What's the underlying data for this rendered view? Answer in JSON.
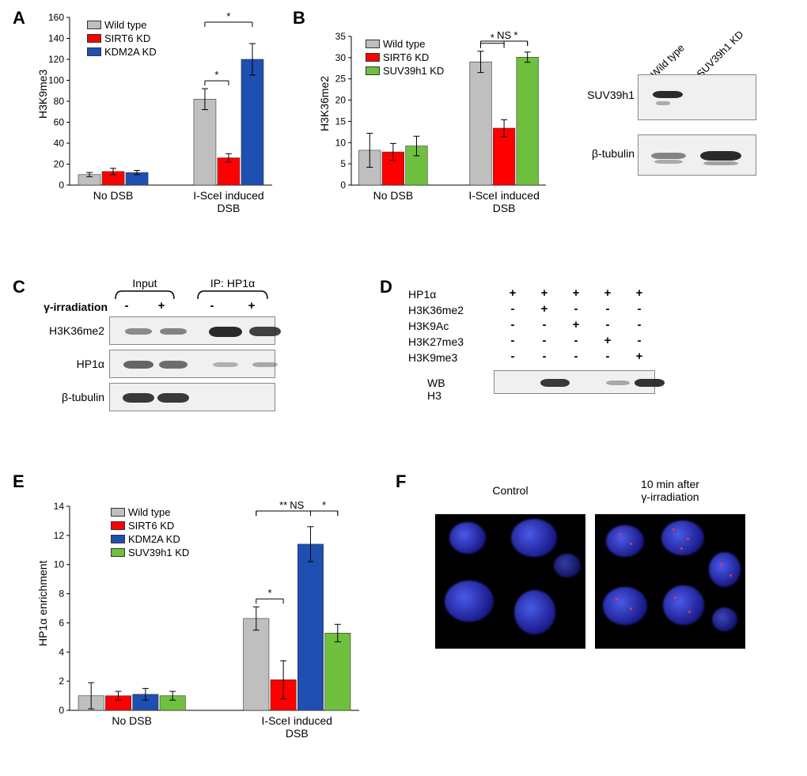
{
  "panelA": {
    "label": "A",
    "type": "bar",
    "ylabel": "H3K9me3",
    "ylim": [
      0,
      160
    ],
    "ytick_step": 20,
    "groups": [
      "No DSB",
      "I-SceI induced\nDSB"
    ],
    "series": [
      {
        "name": "Wild type",
        "color": "#bfbfbf",
        "values": [
          10,
          82
        ],
        "err": [
          2,
          10
        ]
      },
      {
        "name": "SIRT6 KD",
        "color": "#ff0000",
        "values": [
          13,
          26
        ],
        "err": [
          3,
          4
        ]
      },
      {
        "name": "KDM2A KD",
        "color": "#1f4fb0",
        "values": [
          12,
          120
        ],
        "err": [
          2,
          15
        ]
      }
    ],
    "sig": [
      {
        "from": 0,
        "to": 1,
        "group": 1,
        "label": "*"
      },
      {
        "from": 0,
        "to": 2,
        "group": 1,
        "label": "*"
      }
    ],
    "bar_width": 0.8,
    "background_color": "#ffffff",
    "axis_color": "#000000",
    "label_fontsize": 14,
    "tick_fontsize": 13
  },
  "panelB": {
    "label": "B",
    "type": "bar",
    "ylabel": "H3K36me2",
    "ylim": [
      0,
      35
    ],
    "ytick_step": 5,
    "groups": [
      "No DSB",
      "I-SceI induced\nDSB"
    ],
    "series": [
      {
        "name": "Wild type",
        "color": "#bfbfbf",
        "values": [
          8.2,
          29
        ],
        "err": [
          4,
          2.5
        ]
      },
      {
        "name": "SIRT6 KD",
        "color": "#ff0000",
        "values": [
          7.8,
          13.4
        ],
        "err": [
          2,
          2
        ]
      },
      {
        "name": "SUV39h1 KD",
        "color": "#70c040",
        "values": [
          9.2,
          30.1
        ],
        "err": [
          2.3,
          1.2
        ]
      }
    ],
    "sig": [
      {
        "from": 0,
        "to": 1,
        "group": 1,
        "label": "*"
      },
      {
        "from": 1,
        "to": 2,
        "group": 1,
        "label": "*"
      },
      {
        "from": 0,
        "to": 2,
        "group": 1,
        "label": "NS"
      }
    ],
    "blot": {
      "lanes": [
        "Wild type",
        "SUV39h1 KD"
      ],
      "rows": [
        {
          "label": "SUV39h1",
          "bands": [
            1.0,
            0.0
          ]
        },
        {
          "label": "β-tubulin",
          "bands": [
            0.6,
            1.0
          ]
        }
      ],
      "band_color": "#1a1a1a",
      "background": "#f5f5f5"
    }
  },
  "panelC": {
    "label": "C",
    "type": "western",
    "condition_label": "γ-irradiation",
    "group_labels": [
      "Input",
      "IP: HP1α"
    ],
    "conditions": [
      "-",
      "+",
      "-",
      "+"
    ],
    "rows": [
      {
        "label": "H3K36me2",
        "bands": [
          0.35,
          0.4,
          1.0,
          0.85
        ]
      },
      {
        "label": "HP1α",
        "bands": [
          0.6,
          0.55,
          0.1,
          0.15
        ]
      },
      {
        "label": "β-tubulin",
        "bands": [
          0.9,
          0.9,
          0.0,
          0.0
        ]
      }
    ],
    "band_color": "#1a1a1a",
    "background": "#f2f2f2"
  },
  "panelD": {
    "label": "D",
    "type": "peptide-pulldown",
    "row_labels": [
      "HP1α",
      "H3K36me2",
      "H3K9Ac",
      "H3K27me3",
      "H3K9me3"
    ],
    "matrix": [
      [
        "+",
        "+",
        "+",
        "+",
        "+"
      ],
      [
        "-",
        "+",
        "-",
        "-",
        "-"
      ],
      [
        "-",
        "-",
        "+",
        "-",
        "-"
      ],
      [
        "-",
        "-",
        "-",
        "+",
        "-"
      ],
      [
        "-",
        "-",
        "-",
        "-",
        "+"
      ]
    ],
    "wb_label": "WB  H3",
    "bands": [
      0.0,
      0.9,
      0.0,
      0.15,
      0.95
    ],
    "band_color": "#1a1a1a",
    "background": "#f2f2f2"
  },
  "panelE": {
    "label": "E",
    "type": "bar",
    "ylabel": "HP1α enrichment",
    "ylim": [
      0,
      14
    ],
    "ytick_step": 2,
    "groups": [
      "No DSB",
      "I-SceI induced\nDSB"
    ],
    "series": [
      {
        "name": "Wild type",
        "color": "#bfbfbf",
        "values": [
          1.0,
          6.3
        ],
        "err": [
          0.9,
          0.8
        ]
      },
      {
        "name": "SIRT6 KD",
        "color": "#ff0000",
        "values": [
          1.0,
          2.1
        ],
        "err": [
          0.3,
          1.3
        ]
      },
      {
        "name": "KDM2A KD",
        "color": "#1f4fb0",
        "values": [
          1.1,
          11.4
        ],
        "err": [
          0.4,
          1.2
        ]
      },
      {
        "name": "SUV39h1 KD",
        "color": "#70c040",
        "values": [
          1.0,
          5.3
        ],
        "err": [
          0.3,
          0.6
        ]
      }
    ],
    "sig": [
      {
        "from": 0,
        "to": 1,
        "group": 1,
        "label": "*"
      },
      {
        "from": 0,
        "to": 2,
        "group": 1,
        "label": "**"
      },
      {
        "from": 2,
        "to": 3,
        "group": 1,
        "label": "*"
      },
      {
        "from": 0,
        "to": 3,
        "group": 1,
        "label": "NS"
      }
    ]
  },
  "panelF": {
    "label": "F",
    "type": "micrograph",
    "images": [
      {
        "title": "Control",
        "foci": false
      },
      {
        "title": "10 min after\nγ-irradiation",
        "foci": true
      }
    ],
    "nucleus_color": "#2a3ad0",
    "foci_color": "#ff3040",
    "background": "#000000"
  }
}
